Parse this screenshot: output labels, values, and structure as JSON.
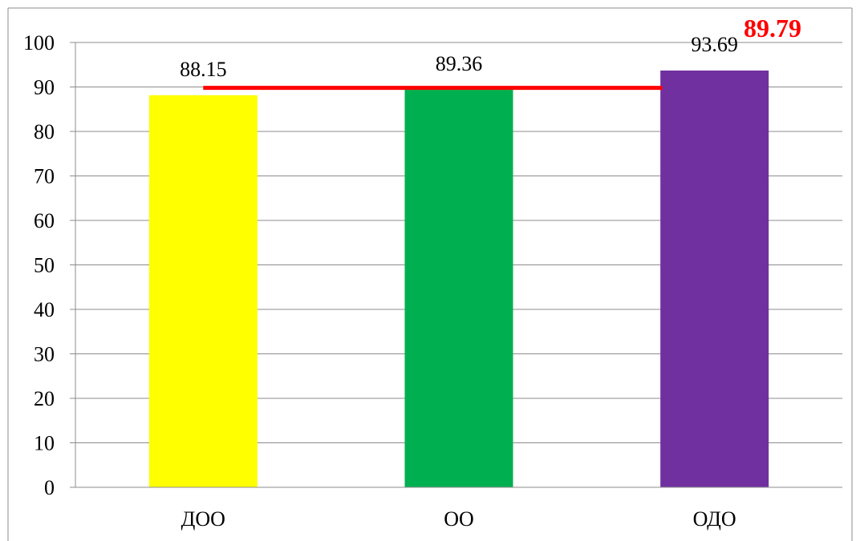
{
  "chart_data": {
    "type": "bar",
    "categories": [
      "ДОО",
      "ОО",
      "ОДО"
    ],
    "values": [
      88.15,
      89.36,
      93.69
    ],
    "data_labels": [
      "88.15",
      "89.36",
      "93.69"
    ],
    "bar_colors": [
      "#ffff00",
      "#00b050",
      "#7030a0"
    ],
    "ylim": [
      0,
      100
    ],
    "y_ticks": [
      0,
      10,
      20,
      30,
      40,
      50,
      60,
      70,
      80,
      90,
      100
    ],
    "grid": true,
    "legend": "none",
    "reference_line": {
      "value": 89.79,
      "label": "89.79",
      "color": "#ff0000"
    }
  }
}
